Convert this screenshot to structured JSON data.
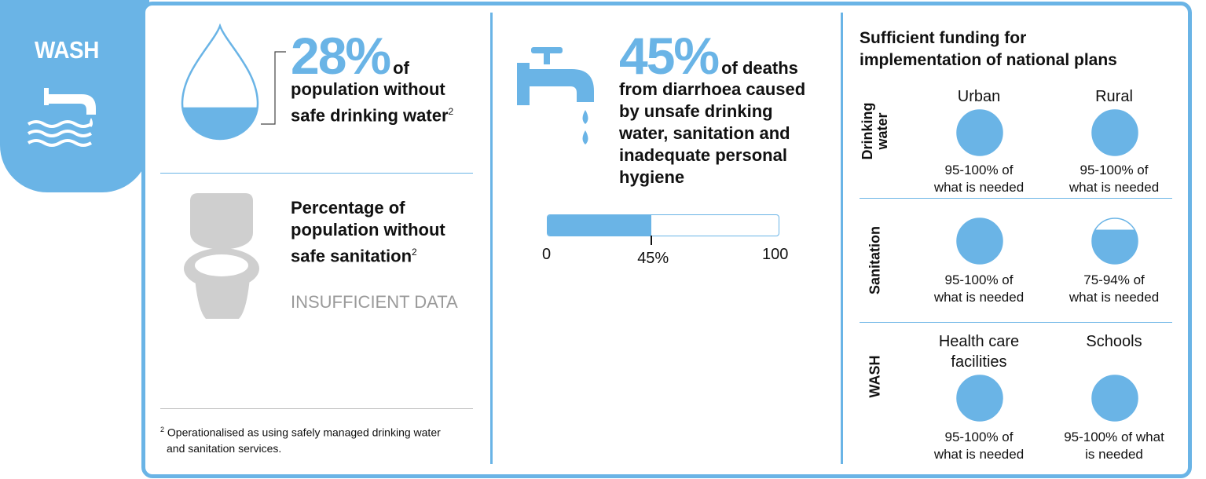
{
  "tab": {
    "title": "WASH",
    "icon": "tap-water-icon"
  },
  "water": {
    "percent": "28%",
    "of": "of",
    "line1": "population without",
    "line2": "safe drinking water",
    "footnote_ref": "2",
    "fill_fraction": 0.28,
    "icon": "water-drop-icon"
  },
  "sanitation": {
    "line1": "Percentage of",
    "line2": "population without",
    "line3": "safe sanitation",
    "footnote_ref": "2",
    "note": "INSUFFICIENT DATA",
    "icon": "toilet-icon"
  },
  "footnote": {
    "marker": "2",
    "line1": "Operationalised as using safely managed drinking water",
    "line2": "and sanitation services."
  },
  "diarrhoea": {
    "percent": "45%",
    "of": "of deaths",
    "lines": [
      "from diarrhoea caused",
      "by unsafe drinking",
      "water, sanitation and",
      "inadequate personal",
      "hygiene"
    ],
    "icon": "faucet-icon",
    "bar_value": 45,
    "bar_min_label": "0",
    "bar_max_label": "100",
    "bar_value_label": "45%"
  },
  "funding": {
    "title_line1": "Sufficient funding for",
    "title_line2": "implementation of national plans",
    "rows": [
      {
        "label_line1": "Drinking",
        "label_line2": "water",
        "columns": [
          {
            "header": "Urban",
            "fill": 1.0,
            "label_line1": "95-100% of",
            "label_line2": "what is needed"
          },
          {
            "header": "Rural",
            "fill": 1.0,
            "label_line1": "95-100% of",
            "label_line2": "what is needed"
          }
        ]
      },
      {
        "label_line1": "Sanitation",
        "label_line2": "",
        "columns": [
          {
            "header": "",
            "fill": 1.0,
            "label_line1": "95-100% of",
            "label_line2": "what is needed"
          },
          {
            "header": "",
            "fill": 0.75,
            "label_line1": "75-94% of",
            "label_line2": "what is needed"
          }
        ]
      },
      {
        "label_line1": "WASH",
        "label_line2": "",
        "columns": [
          {
            "header_line1": "Health care",
            "header_line2": "facilities",
            "fill": 1.0,
            "label_line1": "95-100% of",
            "label_line2": "what is needed"
          },
          {
            "header_line1": "Schools",
            "header_line2": "",
            "fill": 1.0,
            "label_line1": "95-100% of what",
            "label_line2": "is needed"
          }
        ]
      }
    ]
  },
  "colors": {
    "accent": "#6ab4e6",
    "grey": "#cfcfcf",
    "text": "#111111"
  }
}
